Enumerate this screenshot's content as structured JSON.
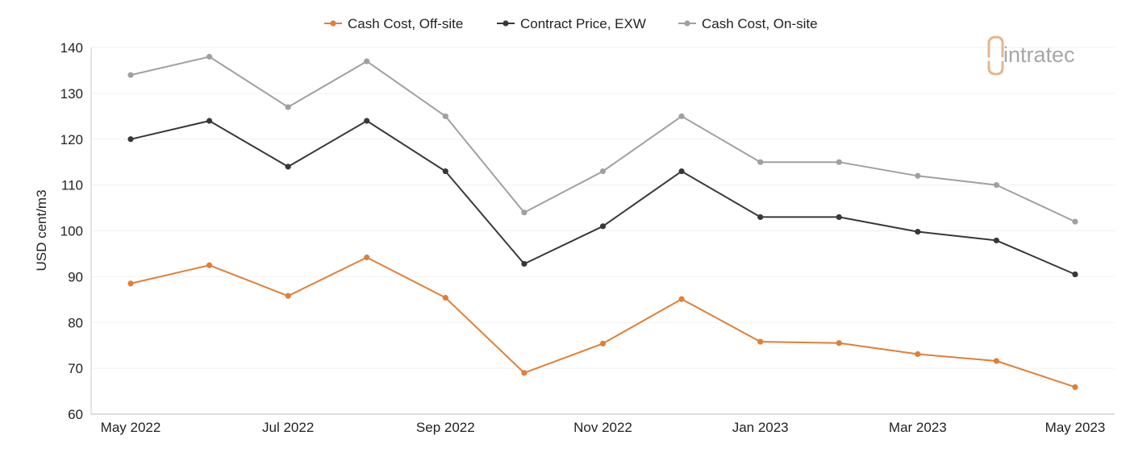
{
  "logo": {
    "text": "intratec"
  },
  "chart_data": {
    "type": "line",
    "title": "",
    "xlabel": "",
    "ylabel": "USD cent/m3",
    "ylim": [
      60,
      140
    ],
    "yticks": [
      60,
      70,
      80,
      90,
      100,
      110,
      120,
      130,
      140
    ],
    "grid": true,
    "legend_position": "top-center",
    "categories": [
      "May 2022",
      "Jun 2022",
      "Jul 2022",
      "Aug 2022",
      "Sep 2022",
      "Oct 2022",
      "Nov 2022",
      "Dec 2022",
      "Jan 2023",
      "Feb 2023",
      "Mar 2023",
      "Apr 2023",
      "May 2023"
    ],
    "xtick_labels": [
      "May 2022",
      "Jul 2022",
      "Sep 2022",
      "Nov 2022",
      "Jan 2023",
      "Mar 2023",
      "May 2023"
    ],
    "series": [
      {
        "name": "Cash Cost, Off-site",
        "color": "#e07f38",
        "values": [
          88.5,
          92.5,
          85.8,
          94.2,
          85.4,
          69.0,
          75.4,
          85.1,
          75.8,
          75.5,
          73.1,
          71.6,
          65.9
        ]
      },
      {
        "name": "Contract Price, EXW",
        "color": "#383838",
        "values": [
          120.0,
          124.0,
          114.0,
          124.0,
          113.0,
          92.8,
          101.0,
          113.0,
          103.0,
          103.0,
          99.8,
          97.9,
          90.5
        ]
      },
      {
        "name": "Cash Cost, On-site",
        "color": "#a0a0a0",
        "values": [
          134.0,
          138.0,
          127.0,
          137.0,
          125.0,
          104.0,
          113.0,
          125.0,
          115.0,
          115.0,
          112.0,
          110.0,
          102.0
        ]
      }
    ]
  }
}
